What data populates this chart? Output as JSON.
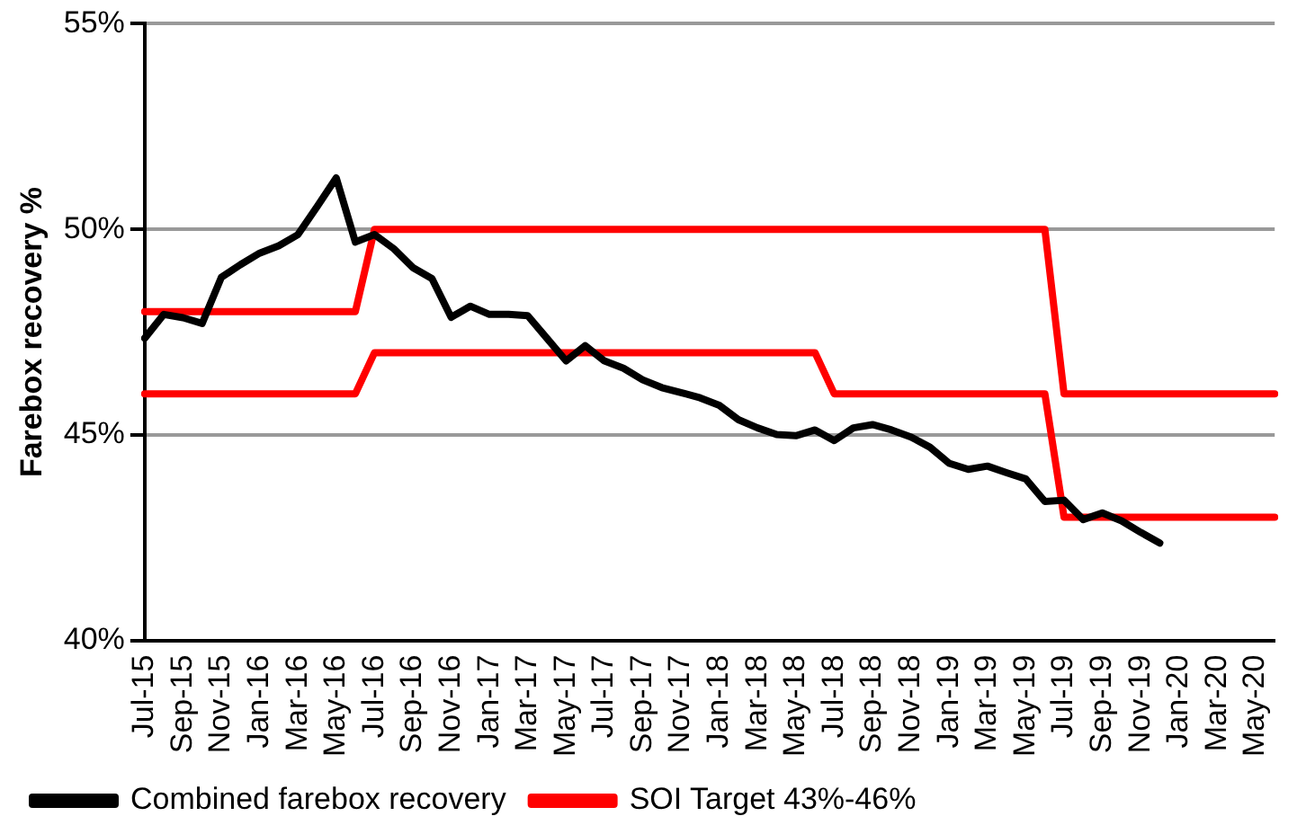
{
  "chart_data": {
    "type": "line",
    "ylabel": "Farebox recovery %",
    "categories": [
      "Jul-15",
      null,
      "Sep-15",
      null,
      "Nov-15",
      null,
      "Jan-16",
      null,
      "Mar-16",
      null,
      "May-16",
      null,
      "Jul-16",
      null,
      "Sep-16",
      null,
      "Nov-16",
      null,
      "Jan-17",
      null,
      "Mar-17",
      null,
      "May-17",
      null,
      "Jul-17",
      null,
      "Sep-17",
      null,
      "Nov-17",
      null,
      "Jan-18",
      null,
      "Mar-18",
      null,
      "May-18",
      null,
      "Jul-18",
      null,
      "Sep-18",
      null,
      "Nov-18",
      null,
      "Jan-19",
      null,
      "Mar-19",
      null,
      "May-19",
      null,
      "Jul-19",
      null,
      "Sep-19",
      null,
      "Nov-19",
      null,
      "Jan-20",
      null,
      "Mar-20",
      null,
      "May-20",
      null
    ],
    "series": [
      {
        "name": "SOI Target 43%-46%",
        "color": "#ff0000",
        "values": [
          48,
          48,
          48,
          48,
          48,
          48,
          48,
          48,
          48,
          48,
          48,
          48,
          50,
          50,
          50,
          50,
          50,
          50,
          50,
          50,
          50,
          50,
          50,
          50,
          50,
          50,
          50,
          50,
          50,
          50,
          50,
          50,
          50,
          50,
          50,
          50,
          50,
          50,
          50,
          50,
          50,
          50,
          50,
          50,
          50,
          50,
          50,
          50,
          46,
          46,
          46,
          46,
          46,
          46,
          46,
          46,
          46,
          46,
          46,
          46
        ]
      },
      {
        "color": "#ff0000",
        "values": [
          46,
          46,
          46,
          46,
          46,
          46,
          46,
          46,
          46,
          46,
          46,
          46,
          47,
          47,
          47,
          47,
          47,
          47,
          47,
          47,
          47,
          47,
          47,
          47,
          47,
          47,
          47,
          47,
          47,
          47,
          47,
          47,
          47,
          47,
          47,
          47,
          46,
          46,
          46,
          46,
          46,
          46,
          46,
          46,
          46,
          46,
          46,
          46,
          43,
          43,
          43,
          43,
          43,
          43,
          43,
          43,
          43,
          43,
          43,
          43
        ]
      },
      {
        "name": "Combined farebox recovery",
        "color": "#000000",
        "values": [
          47.35,
          47.93,
          47.85,
          47.71,
          48.83,
          49.14,
          49.42,
          49.6,
          49.87,
          50.55,
          51.25,
          49.69,
          49.87,
          49.53,
          49.07,
          48.8,
          47.86,
          48.13,
          47.93,
          47.93,
          47.9,
          47.35,
          46.8,
          47.17,
          46.8,
          46.62,
          46.34,
          46.15,
          46.03,
          45.9,
          45.72,
          45.37,
          45.17,
          45.01,
          44.98,
          45.12,
          44.86,
          45.17,
          45.25,
          45.12,
          44.95,
          44.7,
          44.31,
          44.16,
          44.24,
          44.08,
          43.93,
          43.38,
          43.41,
          42.94,
          43.1,
          42.91,
          42.63,
          42.37,
          null,
          null,
          null,
          null,
          null,
          null
        ]
      }
    ],
    "ylim": [
      40,
      55
    ],
    "yticks": [
      {
        "value": 40,
        "label": "40%"
      },
      {
        "value": 45,
        "label": "45%"
      },
      {
        "value": 50,
        "label": "50%"
      },
      {
        "value": 55,
        "label": "55%"
      }
    ],
    "grid": "y",
    "legend": "bottom left",
    "marker": "none",
    "line_style": "solid"
  }
}
